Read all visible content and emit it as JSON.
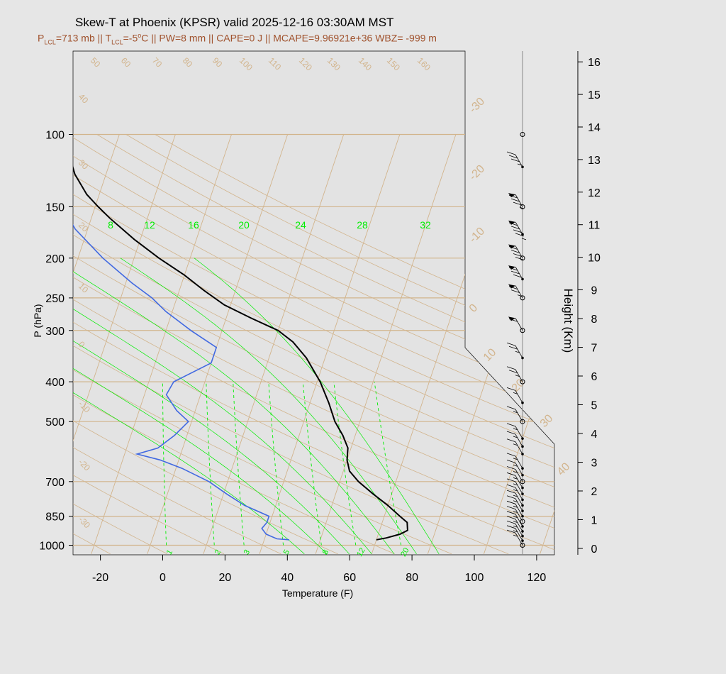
{
  "header": {
    "title": "Skew-T at Phoenix (KPSR) valid 2025-12-16 03:30AM MST",
    "sub": {
      "p_letter": "P",
      "p_sub": "LCL",
      "p_val": "=713 mb || ",
      "t_letter": "T",
      "t_sub": "LCL",
      "t_val1": "=-5",
      "t_sup": "o",
      "t_val2": "C || PW=8 mm || CAPE=0 J || MCAPE=9.96921e+36 WBZ= -999 m"
    }
  },
  "colors": {
    "temperature": "#000000",
    "dewpoint": "#4169e1",
    "isotherm": "#d2b48c",
    "isobar": "#d2b48c",
    "dry_adiabat": "#d2b48c",
    "mixing_ratio": "#00ee00",
    "moist_adiabat": "#00ee00",
    "wind_barb": "#000000",
    "subtitle": "#a0522d"
  },
  "chart_data": {
    "type": "line",
    "diagram": "skew-t",
    "xlabel": "Temperature (F)",
    "ylabel": "P (hPa)",
    "y2label": "Height (Km)",
    "x_ticks": [
      -20,
      0,
      20,
      40,
      60,
      80,
      100,
      120
    ],
    "p_ticks": [
      100,
      150,
      200,
      250,
      300,
      400,
      500,
      700,
      850,
      1000
    ],
    "height_ticks": [
      0,
      1,
      2,
      3,
      4,
      5,
      6,
      7,
      8,
      9,
      10,
      11,
      12,
      13,
      14,
      15,
      16
    ],
    "isotherm_labels": [
      -30,
      -20,
      -10,
      0,
      10,
      20,
      30,
      40
    ],
    "dry_adiabat_labels": [
      -30,
      -20,
      -10,
      0,
      10,
      20,
      30,
      40,
      50,
      60,
      70,
      80,
      90,
      100,
      110,
      120,
      130,
      140,
      150,
      160
    ],
    "mixing_ratio_labels_bottom": [
      1,
      2,
      3,
      5,
      8,
      12,
      20
    ],
    "moist_adiabat_labels_top": [
      8,
      12,
      16,
      20,
      24,
      28,
      32
    ],
    "series": [
      {
        "key": "temperature",
        "points": [
          [
            970,
            68
          ],
          [
            960,
            71
          ],
          [
            940,
            75
          ],
          [
            920,
            77
          ],
          [
            880,
            76
          ],
          [
            850,
            73
          ],
          [
            800,
            68
          ],
          [
            750,
            62
          ],
          [
            700,
            56
          ],
          [
            660,
            52
          ],
          [
            620,
            50
          ],
          [
            580,
            49
          ],
          [
            540,
            46
          ],
          [
            500,
            42
          ],
          [
            450,
            38
          ],
          [
            400,
            33
          ],
          [
            350,
            26
          ],
          [
            320,
            20
          ],
          [
            300,
            14
          ],
          [
            280,
            4
          ],
          [
            260,
            -6
          ],
          [
            240,
            -14
          ],
          [
            220,
            -22
          ],
          [
            200,
            -32
          ],
          [
            180,
            -42
          ],
          [
            160,
            -52
          ],
          [
            150,
            -57
          ],
          [
            140,
            -62
          ],
          [
            125,
            -68
          ],
          [
            115,
            -71
          ],
          [
            100,
            -73
          ]
        ]
      },
      {
        "key": "dewpoint",
        "points": [
          [
            970,
            40
          ],
          [
            965,
            36
          ],
          [
            940,
            32
          ],
          [
            910,
            30
          ],
          [
            880,
            31
          ],
          [
            850,
            31
          ],
          [
            800,
            22
          ],
          [
            750,
            15
          ],
          [
            700,
            8
          ],
          [
            650,
            -2
          ],
          [
            620,
            -10
          ],
          [
            600,
            -18
          ],
          [
            580,
            -12
          ],
          [
            540,
            -8
          ],
          [
            500,
            -5
          ],
          [
            470,
            -10
          ],
          [
            430,
            -15
          ],
          [
            400,
            -14
          ],
          [
            360,
            -4
          ],
          [
            330,
            -4
          ],
          [
            300,
            -14
          ],
          [
            270,
            -24
          ],
          [
            250,
            -30
          ],
          [
            230,
            -38
          ],
          [
            200,
            -50
          ],
          [
            170,
            -62
          ],
          [
            140,
            -72
          ],
          [
            100,
            -90
          ]
        ]
      }
    ],
    "wind_levels": [
      [
        1000,
        15,
        "circle"
      ],
      [
        975,
        15,
        "dot"
      ],
      [
        950,
        15,
        "dot"
      ],
      [
        925,
        15,
        "dot"
      ],
      [
        900,
        15,
        "dot"
      ],
      [
        875,
        15,
        "circle"
      ],
      [
        850,
        15,
        "dot"
      ],
      [
        825,
        15,
        "dot"
      ],
      [
        800,
        15,
        "dot"
      ],
      [
        775,
        15,
        "dot"
      ],
      [
        750,
        15,
        "dot"
      ],
      [
        725,
        15,
        "dot"
      ],
      [
        700,
        15,
        "circle"
      ],
      [
        675,
        15,
        "dot"
      ],
      [
        650,
        15,
        "dot"
      ],
      [
        600,
        15,
        "dot"
      ],
      [
        575,
        15,
        "dot"
      ],
      [
        550,
        15,
        "dot"
      ],
      [
        500,
        15,
        "circle"
      ],
      [
        450,
        15,
        "dot"
      ],
      [
        400,
        25,
        "circle"
      ],
      [
        350,
        25,
        "dot"
      ],
      [
        300,
        60,
        "circle"
      ],
      [
        250,
        75,
        "circle"
      ],
      [
        225,
        80,
        "dot"
      ],
      [
        200,
        90,
        "circle"
      ],
      [
        175,
        95,
        "dot"
      ],
      [
        150,
        85,
        "circle"
      ],
      [
        120,
        35,
        "dot"
      ],
      [
        100,
        0,
        "circle"
      ]
    ]
  }
}
